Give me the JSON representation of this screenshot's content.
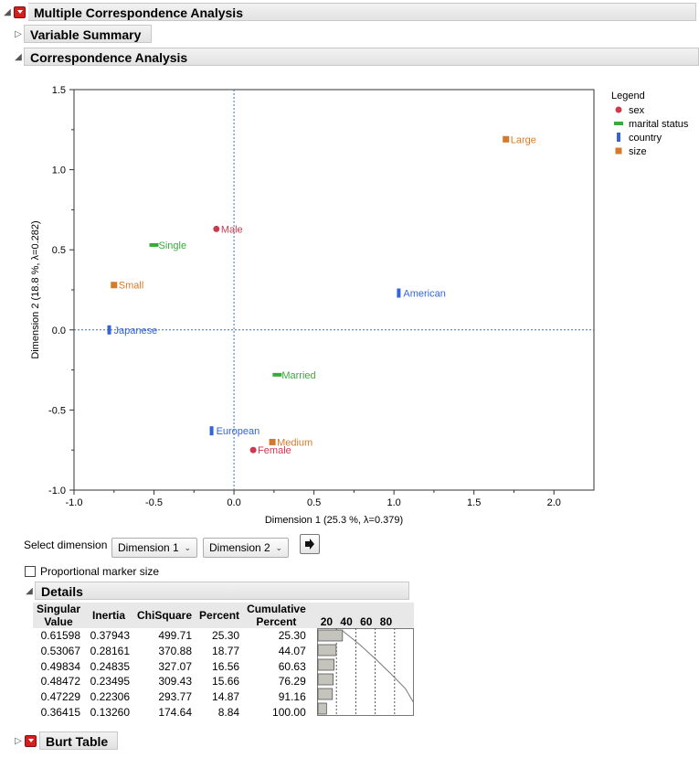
{
  "report": {
    "title": "Multiple Correspondence Analysis",
    "variable_summary": "Variable Summary",
    "correspondence_analysis": "Correspondence Analysis",
    "details": "Details",
    "burt_table": "Burt Table"
  },
  "chart_data": {
    "type": "scatter",
    "xlabel": "Dimension 1  (25.3 %, λ=0.379)",
    "ylabel": "Dimension 2  (18.8 %, λ=0.282)",
    "xlim": [
      -1.0,
      2.25
    ],
    "ylim": [
      -1.0,
      1.5
    ],
    "xticks": [
      -1.0,
      -0.5,
      0.0,
      0.5,
      1.0,
      1.5,
      2.0
    ],
    "yticks": [
      -1.0,
      -0.5,
      0.0,
      0.5,
      1.0,
      1.5
    ],
    "xtick_labels": [
      "-1.0",
      "-0.5",
      "0.0",
      "0.5",
      "1.0",
      "1.5",
      "2.0"
    ],
    "ytick_labels": [
      "-1.0",
      "-0.5",
      "0.0",
      "0.5",
      "1.0",
      "1.5"
    ],
    "legend_title": "Legend",
    "legend_position": "right",
    "series": [
      {
        "name": "sex",
        "color": "#cc3a4f",
        "marker": "circle",
        "points": [
          {
            "label": "Male",
            "x": -0.11,
            "y": 0.63
          },
          {
            "label": "Female",
            "x": 0.12,
            "y": -0.75
          }
        ]
      },
      {
        "name": "marital status",
        "color": "#38ac3b",
        "marker": "hbar",
        "points": [
          {
            "label": "Single",
            "x": -0.5,
            "y": 0.53
          },
          {
            "label": "Married",
            "x": 0.27,
            "y": -0.28
          }
        ]
      },
      {
        "name": "country",
        "color": "#3464d5",
        "marker": "vbar",
        "points": [
          {
            "label": "American",
            "x": 1.03,
            "y": 0.23
          },
          {
            "label": "Japanese",
            "x": -0.78,
            "y": 0.0
          },
          {
            "label": "European",
            "x": -0.14,
            "y": -0.63
          }
        ]
      },
      {
        "name": "size",
        "color": "#d57a2a",
        "marker": "square",
        "points": [
          {
            "label": "Large",
            "x": 1.7,
            "y": 1.19
          },
          {
            "label": "Small",
            "x": -0.75,
            "y": 0.28
          },
          {
            "label": "Medium",
            "x": 0.24,
            "y": -0.7
          }
        ]
      }
    ]
  },
  "controls": {
    "select_dimension_label": "Select dimension",
    "dim_x": "Dimension 1",
    "dim_y": "Dimension 2",
    "proportional_label": "Proportional marker size"
  },
  "details_table": {
    "headers": [
      [
        "Singular",
        "Value"
      ],
      [
        "",
        "Inertia"
      ],
      [
        "",
        "ChiSquare"
      ],
      [
        "",
        "Percent"
      ],
      [
        "Cumulative",
        "Percent"
      ],
      [
        "",
        "20 40 60 80"
      ]
    ],
    "rows": [
      {
        "sv": "0.61598",
        "inertia": "0.37943",
        "chisq": "499.71",
        "pct": "25.30",
        "cum": "25.30",
        "pct_val": 25.3,
        "cum_val": 25.3
      },
      {
        "sv": "0.53067",
        "inertia": "0.28161",
        "chisq": "370.88",
        "pct": "18.77",
        "cum": "44.07",
        "pct_val": 18.77,
        "cum_val": 44.07
      },
      {
        "sv": "0.49834",
        "inertia": "0.24835",
        "chisq": "327.07",
        "pct": "16.56",
        "cum": "60.63",
        "pct_val": 16.56,
        "cum_val": 60.63
      },
      {
        "sv": "0.48472",
        "inertia": "0.23495",
        "chisq": "309.43",
        "pct": "15.66",
        "cum": "76.29",
        "pct_val": 15.66,
        "cum_val": 76.29
      },
      {
        "sv": "0.47229",
        "inertia": "0.22306",
        "chisq": "293.77",
        "pct": "14.87",
        "cum": "91.16",
        "pct_val": 14.87,
        "cum_val": 91.16
      },
      {
        "sv": "0.36415",
        "inertia": "0.13260",
        "chisq": "174.64",
        "pct": "8.84",
        "cum": "100.00",
        "pct_val": 8.84,
        "cum_val": 100.0
      }
    ]
  },
  "colors": {
    "accent_red": "#d41f1f"
  }
}
